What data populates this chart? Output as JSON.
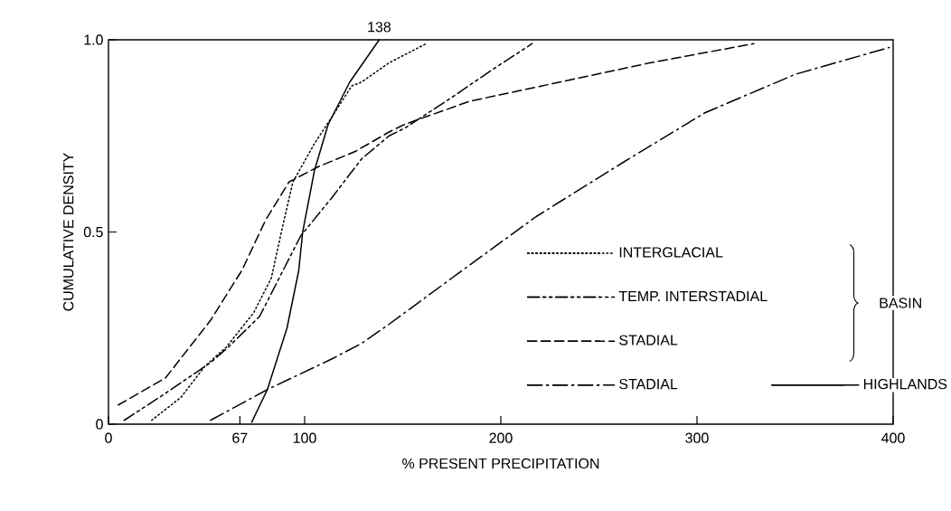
{
  "chart_data": {
    "type": "line",
    "xlabel": "% PRESENT PRECIPITATION",
    "ylabel": "CUMULATIVE DENSITY",
    "xlim": [
      0,
      400
    ],
    "ylim": [
      0,
      1
    ],
    "xticks": [
      0,
      67,
      100,
      200,
      300,
      400
    ],
    "yticks": [
      0,
      0.5,
      {
        "value": 1,
        "label": "1.0"
      }
    ],
    "grid": false,
    "legend": "bottom right",
    "marker": "none",
    "annotations": [
      {
        "text": "138",
        "x": 138,
        "y": 1
      },
      "BASIN"
    ],
    "series": [
      {
        "name": "INTERGLACIAL",
        "color": "#000000",
        "line_style": "dotted",
        "x": [
          22,
          37,
          49,
          60,
          74,
          83,
          89,
          94,
          105,
          114,
          124,
          129,
          143,
          162
        ],
        "values": [
          0.01,
          0.07,
          0.15,
          0.2,
          0.29,
          0.38,
          0.52,
          0.63,
          0.73,
          0.8,
          0.88,
          0.89,
          0.94,
          0.99
        ]
      },
      {
        "name": "TEMP. INTERSTADIAL",
        "color": "#000000",
        "line_style": "dashed",
        "x": [
          8,
          29,
          52,
          61,
          77,
          89,
          98,
          114,
          129,
          143,
          151,
          175,
          195,
          216
        ],
        "values": [
          0.01,
          0.08,
          0.16,
          0.2,
          0.28,
          0.4,
          0.49,
          0.59,
          0.69,
          0.75,
          0.77,
          0.85,
          0.92,
          0.99
        ]
      },
      {
        "name": "STADIAL",
        "color": "#000000",
        "line_style": "dashed",
        "x": [
          5,
          29,
          52,
          68,
          80,
          92,
          107,
          126,
          143,
          151,
          184,
          221,
          276,
          329
        ],
        "values": [
          0.05,
          0.12,
          0.27,
          0.4,
          0.53,
          0.63,
          0.67,
          0.71,
          0.76,
          0.78,
          0.84,
          0.88,
          0.94,
          0.99
        ]
      },
      {
        "name": "STADIAL",
        "color": "#000000",
        "line_style": "dashed",
        "x": [
          52,
          81,
          114,
          129,
          143,
          175,
          218,
          262,
          304,
          350,
          398
        ],
        "values": [
          0.01,
          0.09,
          0.17,
          0.21,
          0.26,
          0.38,
          0.54,
          0.68,
          0.81,
          0.91,
          0.98
        ]
      },
      {
        "name": "HIGHLANDS",
        "color": "#000000",
        "line_style": "solid",
        "x": [
          73,
          81,
          91,
          97,
          99,
          105,
          112,
          123,
          138
        ],
        "values": [
          0.005,
          0.09,
          0.25,
          0.4,
          0.5,
          0.66,
          0.78,
          0.89,
          1
        ]
      }
    ]
  }
}
